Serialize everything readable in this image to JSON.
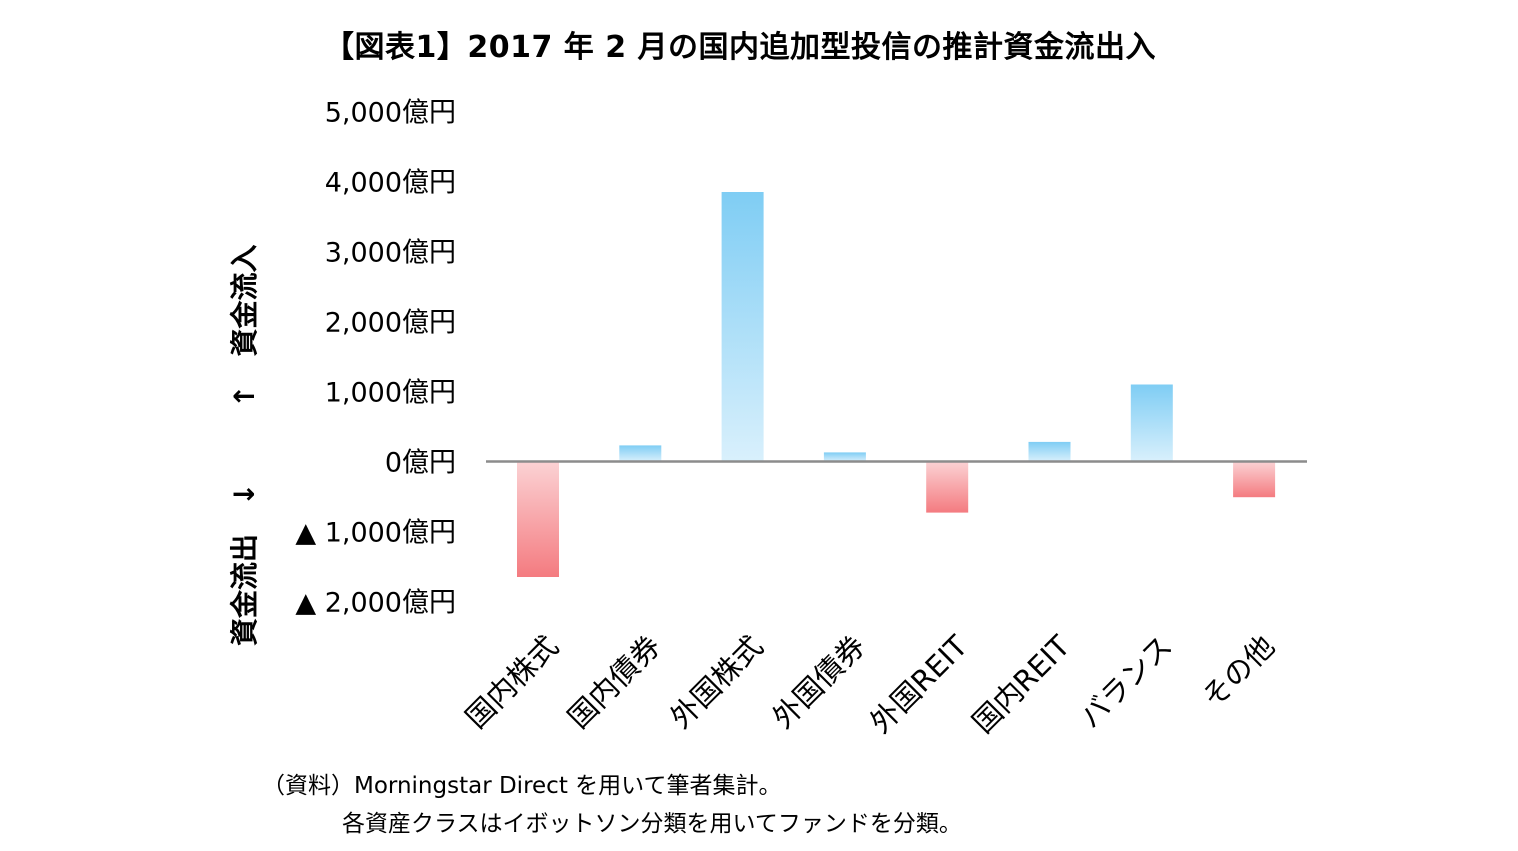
{
  "chart_data": {
    "type": "bar",
    "title": "【図表1】2017 年 2 月の国内追加型投信の推計資金流出入",
    "categories": [
      "国内株式",
      "国内債券",
      "外国株式",
      "外国債券",
      "外国REIT",
      "国内REIT",
      "バランス",
      "その他"
    ],
    "values": [
      -1650,
      230,
      3850,
      130,
      -730,
      280,
      1100,
      -510
    ],
    "unit": "億円",
    "ylim": [
      -2000,
      5000
    ],
    "yticks": [
      {
        "value": 5000,
        "label": "5,000億円"
      },
      {
        "value": 4000,
        "label": "4,000億円"
      },
      {
        "value": 3000,
        "label": "3,000億円"
      },
      {
        "value": 2000,
        "label": "2,000億円"
      },
      {
        "value": 1000,
        "label": "1,000億円"
      },
      {
        "value": 0,
        "label": "0億円"
      },
      {
        "value": -1000,
        "label": "▲ 1,000億円"
      },
      {
        "value": -2000,
        "label": "▲ 2,000億円"
      }
    ],
    "ylabel_positive": "↑　資金流入",
    "ylabel_negative": "資金流出　↓",
    "grid": false,
    "legend": "none",
    "colors": {
      "positive_top": "#7fcdf4",
      "positive_bottom": "#d9f0fc",
      "negative_top": "#fbd2d4",
      "negative_bottom": "#f47b80",
      "axis": "#8c8c8c"
    }
  },
  "source": {
    "line1": "（資料）Morningstar Direct を用いて筆者集計。",
    "line2": "各資産クラスはイボットソン分類を用いてファンドを分類。"
  }
}
